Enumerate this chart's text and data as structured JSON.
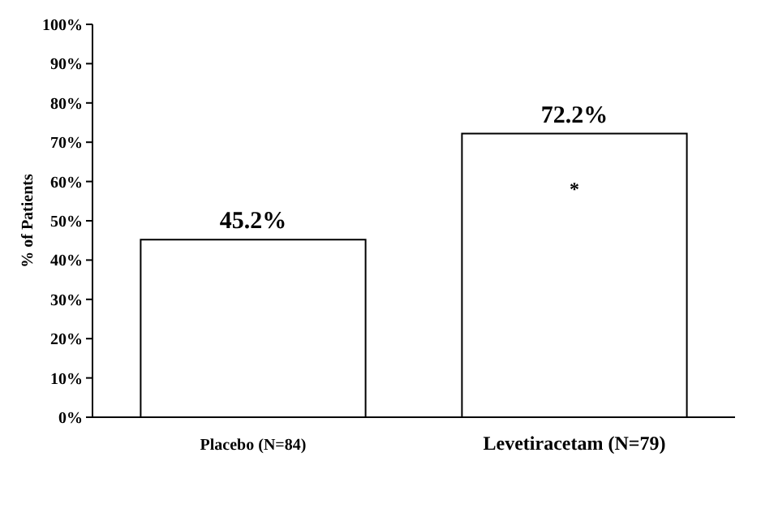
{
  "chart_data": {
    "type": "bar",
    "ylabel": "% of Patients",
    "categories": [
      "Placebo (N=84)",
      "Levetiracetam (N=79)"
    ],
    "values": [
      45.2,
      72.2
    ],
    "color": "#ffffff",
    "value_labels": [
      "45.2%",
      "72.2%"
    ],
    "ylim": [
      0,
      100
    ],
    "yticks": [
      {
        "value": 0,
        "label": "0%"
      },
      {
        "value": 10,
        "label": "10%"
      },
      {
        "value": 20,
        "label": "20%"
      },
      {
        "value": 30,
        "label": "30%"
      },
      {
        "value": 40,
        "label": "40%"
      },
      {
        "value": 50,
        "label": "50%"
      },
      {
        "value": 60,
        "label": "60%"
      },
      {
        "value": 70,
        "label": "70%"
      },
      {
        "value": 80,
        "label": "80%"
      },
      {
        "value": 90,
        "label": "90%"
      },
      {
        "value": 100,
        "label": "100%"
      }
    ],
    "annotations": [
      "*"
    ],
    "grid": false
  }
}
